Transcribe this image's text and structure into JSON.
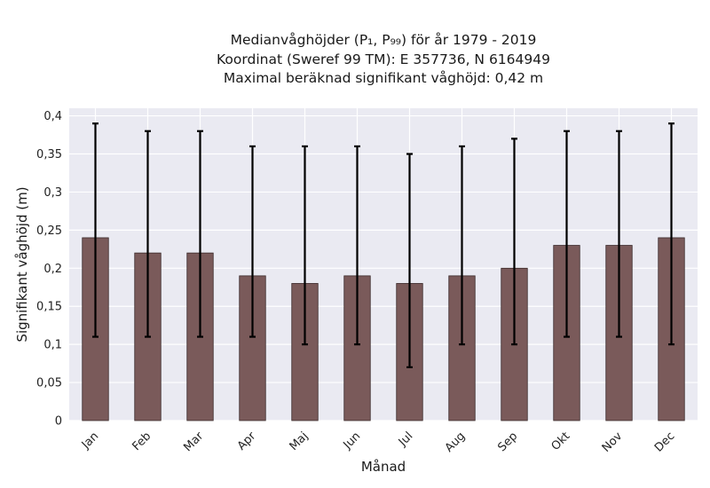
{
  "chart_data": {
    "type": "bar",
    "title_lines": [
      "Medianvåghöjder (P₁, P₉₉) för år 1979 - 2019",
      "Koordinat (Sweref 99 TM): E 357736, N 6164949",
      "Maximal beräknad signifikant våghöjd: 0,42 m"
    ],
    "xlabel": "Månad",
    "ylabel": "Signifikant våghöjd (m)",
    "categories": [
      "Jan",
      "Feb",
      "Mar",
      "Apr",
      "Maj",
      "Jun",
      "Jul",
      "Aug",
      "Sep",
      "Okt",
      "Nov",
      "Dec"
    ],
    "values": [
      0.24,
      0.22,
      0.22,
      0.19,
      0.18,
      0.19,
      0.18,
      0.19,
      0.2,
      0.23,
      0.23,
      0.24
    ],
    "error_low": [
      0.11,
      0.11,
      0.11,
      0.11,
      0.1,
      0.1,
      0.07,
      0.1,
      0.1,
      0.11,
      0.11,
      0.1
    ],
    "error_high": [
      0.39,
      0.38,
      0.38,
      0.36,
      0.36,
      0.36,
      0.35,
      0.36,
      0.37,
      0.38,
      0.38,
      0.39
    ],
    "ylim": [
      0,
      0.41
    ],
    "yticks": [
      0,
      0.05,
      0.1,
      0.15,
      0.2,
      0.25,
      0.3,
      0.35,
      0.4
    ],
    "ytick_labels": [
      "0",
      "0,05",
      "0,1",
      "0,15",
      "0,2",
      "0,25",
      "0,3",
      "0,35",
      "0,4"
    ],
    "grid": true,
    "colors": {
      "bar": "#7a5a5a",
      "bar_edge": "#3a2a2a",
      "error": "#000000",
      "plot_bg": "#eaeaf2",
      "grid": "#ffffff"
    }
  }
}
